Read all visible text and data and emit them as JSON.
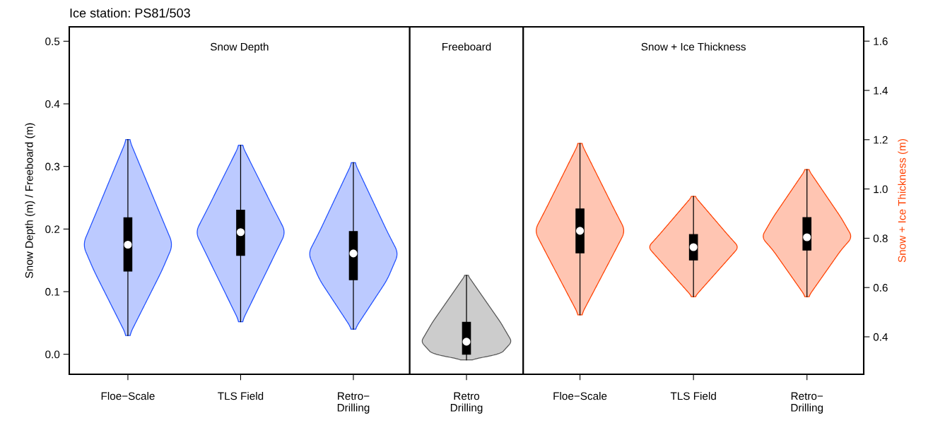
{
  "chart_data": [
    {
      "type": "box",
      "title": "Ice station: PS81/503",
      "subtitle": "Snow Depth",
      "ylabel": "Snow Depth (m) / Freeboard (m)",
      "categories": [
        "Floe−Scale",
        "TLS Field",
        "Retro−\nDrilling"
      ],
      "ylim": [
        -0.032,
        0.523
      ],
      "yticks": [
        {
          "value": 0,
          "label": "0.0"
        },
        0.1,
        0.2,
        0.3,
        0.4,
        0.5
      ],
      "grid": false,
      "legend": false,
      "series": [
        {
          "color": "#000000",
          "boxes": [
            {
              "low": 0.03,
              "q1": 0.133,
              "median": 0.175,
              "q3": 0.218,
              "high": 0.343
            },
            {
              "low": 0.052,
              "q1": 0.158,
              "median": 0.195,
              "q3": 0.23,
              "high": 0.334
            },
            {
              "low": 0.04,
              "q1": 0.119,
              "median": 0.161,
              "q3": 0.196,
              "high": 0.306
            }
          ]
        }
      ]
    },
    {
      "type": "box",
      "subtitle": "Freeboard",
      "categories": [
        "Retro\nDrilling"
      ],
      "ylim": [
        -0.032,
        0.523
      ],
      "tick_labels": "x",
      "grid": false,
      "legend": false,
      "series": [
        {
          "color": "#000000",
          "boxes": [
            {
              "low": -0.009,
              "q1": 0.0,
              "median": 0.02,
              "q3": 0.051,
              "high": 0.126
            }
          ]
        }
      ]
    },
    {
      "type": "box",
      "subtitle": "Snow + Ice Thickness",
      "y2label": "Snow + Ice Thickness (m)",
      "categories": [
        "Floe−Scale",
        "TLS Field",
        "Retro−\nDrilling"
      ],
      "y2lim": [
        0.248,
        1.658
      ],
      "y2ticks": [
        0.4,
        0.6,
        0.8,
        {
          "value": 1,
          "label": "1.0"
        },
        1.2,
        1.4,
        1.6
      ],
      "grid": false,
      "legend": false,
      "series": [
        {
          "color": "#000000",
          "axis": "y2",
          "boxes": [
            {
              "low": 0.489,
              "q1": 0.741,
              "median": 0.83,
              "q3": 0.919,
              "high": 1.185
            },
            {
              "low": 0.563,
              "q1": 0.712,
              "median": 0.764,
              "q3": 0.815,
              "high": 0.97
            },
            {
              "low": 0.563,
              "q1": 0.752,
              "median": 0.804,
              "q3": 0.884,
              "high": 1.079
            }
          ]
        }
      ]
    }
  ]
}
